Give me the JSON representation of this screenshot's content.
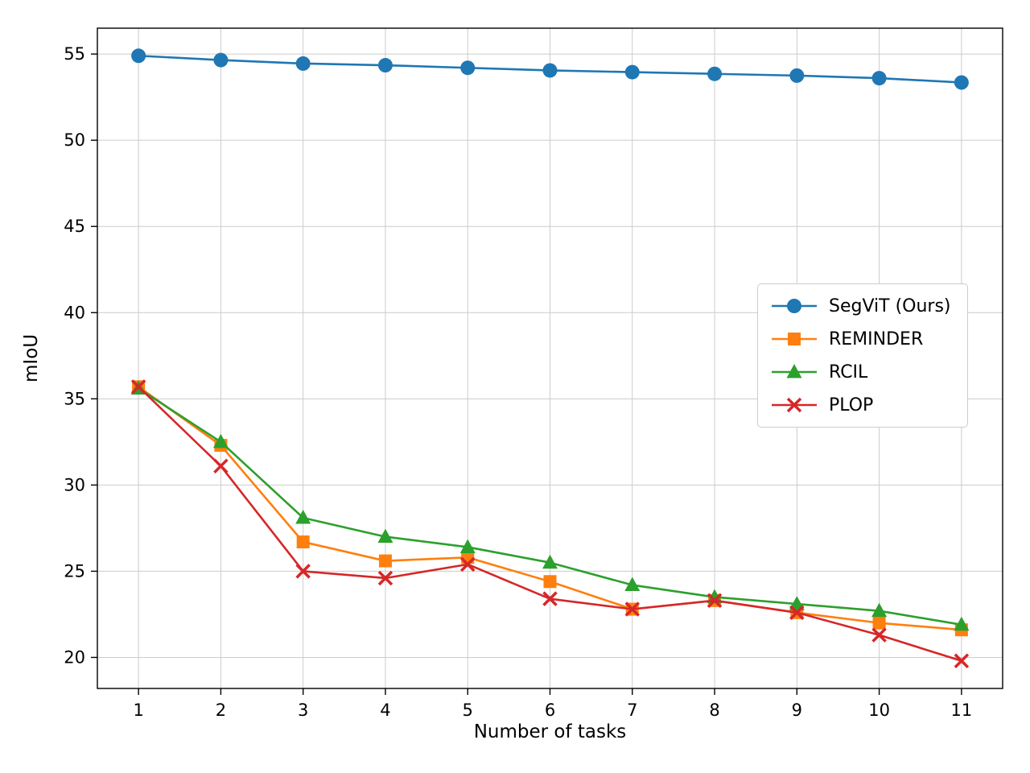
{
  "chart_data": {
    "type": "line",
    "title": "",
    "xlabel": "Number of tasks",
    "ylabel": "mIoU",
    "x": [
      1,
      2,
      3,
      4,
      5,
      6,
      7,
      8,
      9,
      10,
      11
    ],
    "series": [
      {
        "name": "SegViT (Ours)",
        "color": "#1f77b4",
        "marker": "circle",
        "values": [
          54.9,
          54.65,
          54.45,
          54.35,
          54.2,
          54.05,
          53.95,
          53.85,
          53.75,
          53.6,
          53.35
        ]
      },
      {
        "name": "REMINDER",
        "color": "#ff7f0e",
        "marker": "square",
        "values": [
          35.7,
          32.3,
          26.7,
          25.6,
          25.8,
          24.4,
          22.8,
          23.3,
          22.6,
          22.0,
          21.6
        ]
      },
      {
        "name": "RCIL",
        "color": "#2ca02c",
        "marker": "triangle",
        "values": [
          35.6,
          32.5,
          28.1,
          27.0,
          26.4,
          25.5,
          24.2,
          23.5,
          23.1,
          22.7,
          21.9
        ]
      },
      {
        "name": "PLOP",
        "color": "#d62728",
        "marker": "x",
        "values": [
          35.7,
          31.1,
          25.0,
          24.6,
          25.4,
          23.4,
          22.8,
          23.3,
          22.6,
          21.3,
          19.8
        ]
      }
    ],
    "xlim": [
      0.5,
      11.5
    ],
    "ylim": [
      18.2,
      56.5
    ],
    "xticks": [
      1,
      2,
      3,
      4,
      5,
      6,
      7,
      8,
      9,
      10,
      11
    ],
    "yticks": [
      20,
      25,
      30,
      35,
      40,
      45,
      50,
      55
    ],
    "grid": true,
    "legend_position": "center-right"
  }
}
